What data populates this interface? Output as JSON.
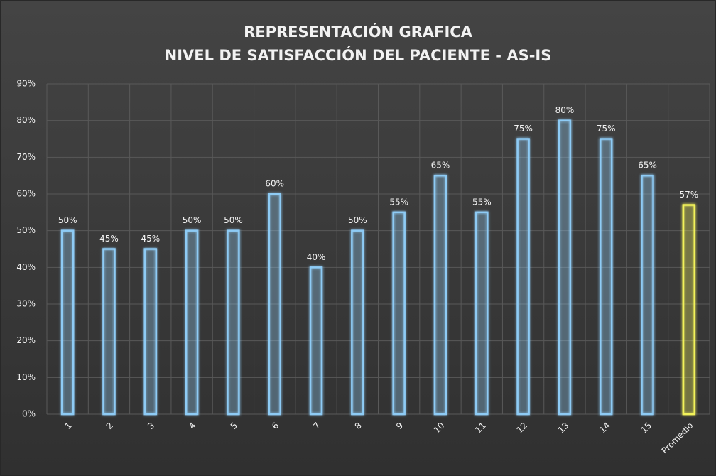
{
  "chart_data": {
    "type": "bar",
    "title": "REPRESENTACIÓN GRAFICA",
    "subtitle": "NIVEL DE SATISFACCIÓN DEL PACIENTE  -  AS-IS",
    "categories": [
      "1",
      "2",
      "3",
      "4",
      "5",
      "6",
      "7",
      "8",
      "9",
      "10",
      "11",
      "12",
      "13",
      "14",
      "15",
      "Promedio"
    ],
    "values": [
      50,
      45,
      45,
      50,
      50,
      60,
      40,
      50,
      55,
      65,
      55,
      75,
      80,
      75,
      65,
      57
    ],
    "value_labels": [
      "50%",
      "45%",
      "45%",
      "50%",
      "50%",
      "60%",
      "40%",
      "50%",
      "55%",
      "65%",
      "55%",
      "75%",
      "80%",
      "75%",
      "65%",
      "57%"
    ],
    "colors": [
      "#8ecbf5",
      "#8ecbf5",
      "#8ecbf5",
      "#8ecbf5",
      "#8ecbf5",
      "#8ecbf5",
      "#8ecbf5",
      "#8ecbf5",
      "#8ecbf5",
      "#8ecbf5",
      "#8ecbf5",
      "#8ecbf5",
      "#8ecbf5",
      "#8ecbf5",
      "#8ecbf5",
      "#f2f25a"
    ],
    "ylim": [
      0,
      90
    ],
    "yticks": [
      {
        "value": 0,
        "label": "0%"
      },
      {
        "value": 10,
        "label": "10%"
      },
      {
        "value": 20,
        "label": "20%"
      },
      {
        "value": 30,
        "label": "30%"
      },
      {
        "value": 40,
        "label": "40%"
      },
      {
        "value": 50,
        "label": "50%"
      },
      {
        "value": 60,
        "label": "60%"
      },
      {
        "value": 70,
        "label": "70%"
      },
      {
        "value": 80,
        "label": "80%"
      },
      {
        "value": 90,
        "label": "90%"
      }
    ],
    "grid": true
  }
}
